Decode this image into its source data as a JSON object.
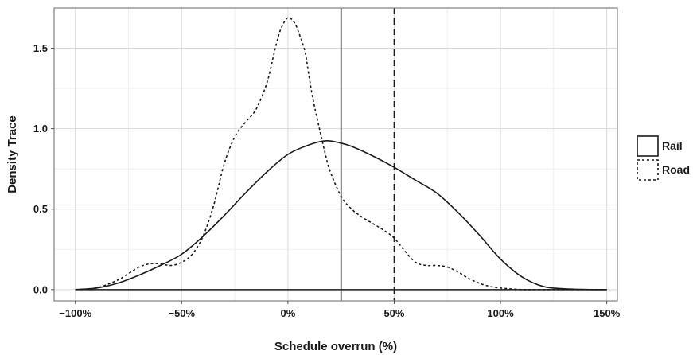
{
  "chart_data": {
    "type": "line",
    "xlabel": "Schedule overrun (%)",
    "ylabel": "Density Trace",
    "xlim": [
      -110,
      155
    ],
    "ylim": [
      -0.07,
      1.75
    ],
    "x_ticks": [
      -100,
      -50,
      0,
      50,
      100,
      150
    ],
    "x_tick_labels": [
      "−100%",
      "−50%",
      "0%",
      "50%",
      "100%",
      "150%"
    ],
    "y_ticks": [
      0.0,
      0.5,
      1.0,
      1.5
    ],
    "y_tick_labels": [
      "0.0",
      "0.5",
      "1.0",
      "1.5"
    ],
    "grid": true,
    "legend_position": "right",
    "series": [
      {
        "name": "Rail",
        "line_style": "solid",
        "x": [
          -100,
          -90,
          -80,
          -70,
          -60,
          -50,
          -40,
          -30,
          -20,
          -10,
          0,
          10,
          18,
          25,
          30,
          40,
          50,
          60,
          70,
          80,
          90,
          100,
          110,
          120,
          130,
          140,
          150
        ],
        "y": [
          0.0,
          0.01,
          0.04,
          0.09,
          0.15,
          0.22,
          0.33,
          0.46,
          0.6,
          0.73,
          0.84,
          0.9,
          0.925,
          0.91,
          0.89,
          0.83,
          0.76,
          0.68,
          0.6,
          0.48,
          0.34,
          0.19,
          0.08,
          0.02,
          0.005,
          0.001,
          0.0
        ]
      },
      {
        "name": "Road",
        "line_style": "dotted",
        "x": [
          -100,
          -90,
          -80,
          -75,
          -70,
          -65,
          -60,
          -55,
          -50,
          -45,
          -40,
          -35,
          -30,
          -25,
          -20,
          -15,
          -10,
          -7,
          -5,
          -3,
          0,
          3,
          5,
          8,
          10,
          12,
          15,
          18,
          20,
          25,
          30,
          35,
          40,
          45,
          50,
          55,
          60,
          65,
          70,
          75,
          80,
          85,
          90,
          95,
          100,
          110,
          120,
          150
        ],
        "y": [
          0.0,
          0.01,
          0.06,
          0.1,
          0.14,
          0.16,
          0.16,
          0.15,
          0.17,
          0.22,
          0.33,
          0.52,
          0.78,
          0.95,
          1.04,
          1.12,
          1.28,
          1.44,
          1.55,
          1.63,
          1.69,
          1.66,
          1.6,
          1.48,
          1.32,
          1.17,
          0.99,
          0.82,
          0.73,
          0.58,
          0.5,
          0.45,
          0.41,
          0.37,
          0.32,
          0.24,
          0.17,
          0.15,
          0.15,
          0.14,
          0.11,
          0.07,
          0.04,
          0.02,
          0.01,
          0.0,
          0.0,
          0.0
        ]
      }
    ],
    "reference_lines": [
      {
        "x": 25,
        "style": "solid"
      },
      {
        "x": 50,
        "style": "dashed"
      }
    ]
  }
}
